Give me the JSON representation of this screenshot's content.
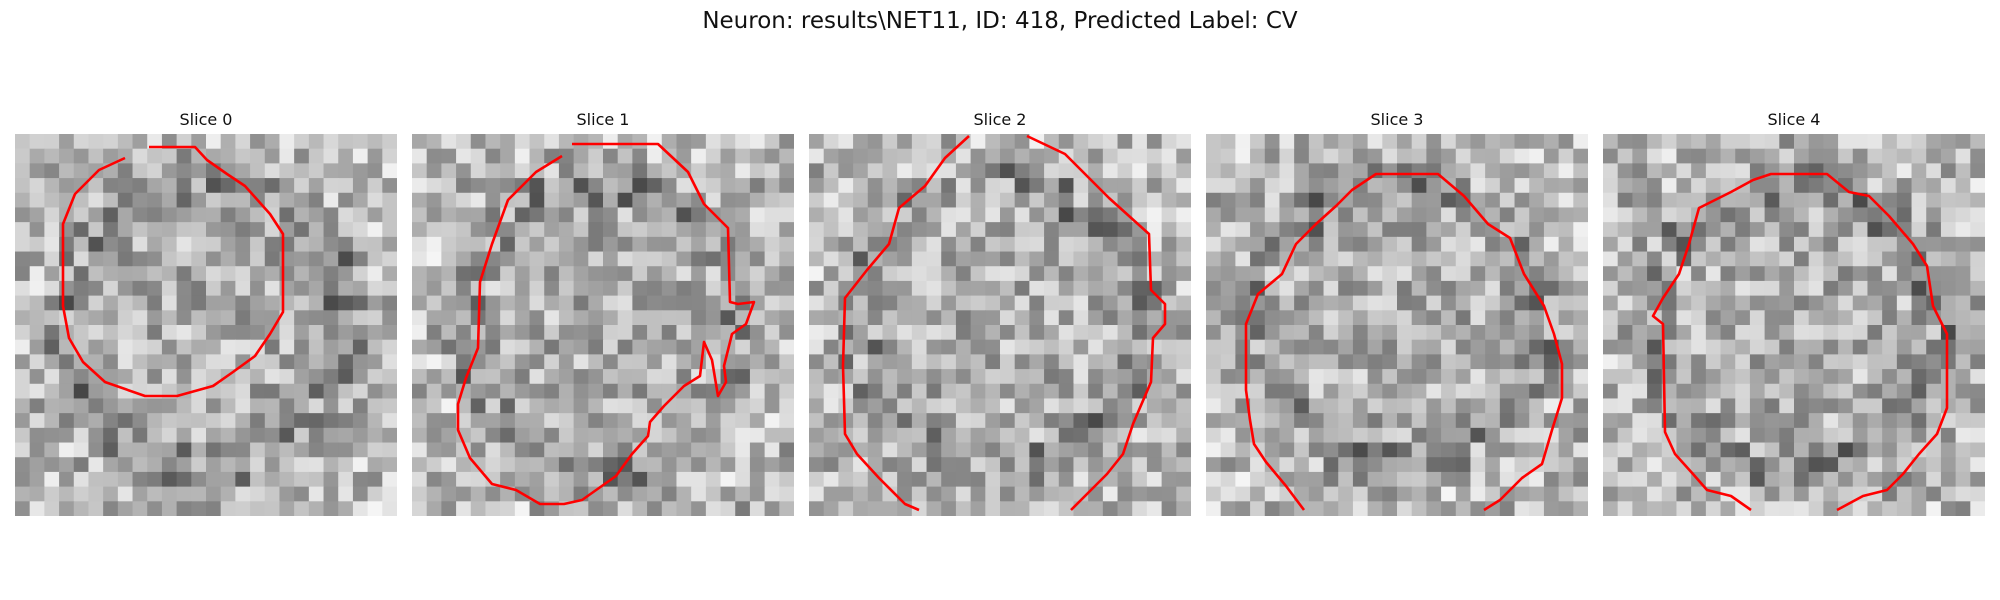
{
  "figure": {
    "title": "Neuron: results\\NET11, ID: 418, Predicted Label: CV",
    "contour_color": "#ff0000"
  },
  "panels": [
    {
      "title": "Slice 0"
    },
    {
      "title": "Slice 1"
    },
    {
      "title": "Slice 2"
    },
    {
      "title": "Slice 3"
    },
    {
      "title": "Slice 4"
    }
  ]
}
